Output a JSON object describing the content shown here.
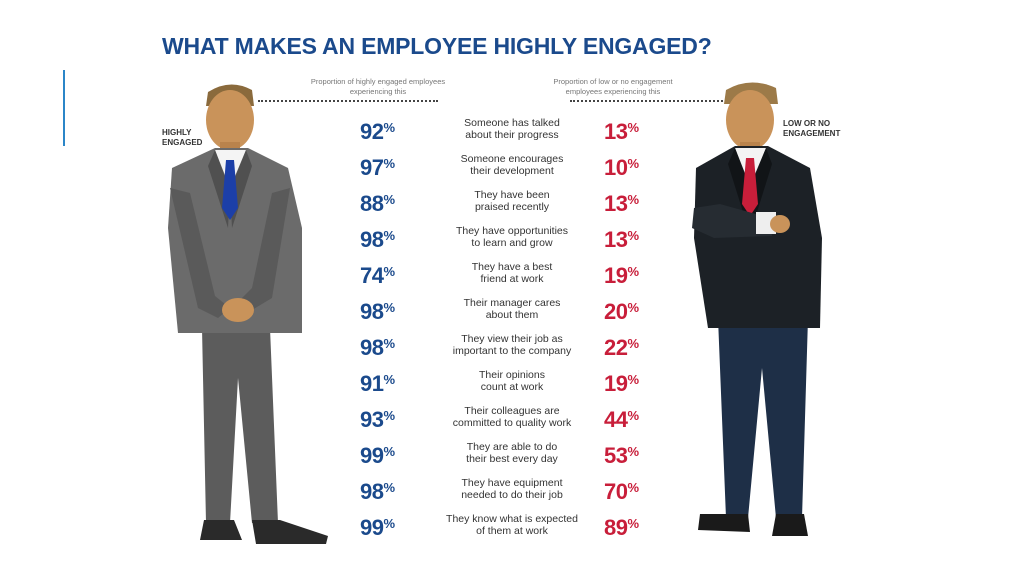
{
  "title": "WHAT MAKES AN EMPLOYEE HIGHLY ENGAGED?",
  "header": {
    "left_column": "Proportion of highly engaged employees experiencing this",
    "right_column": "Proportion of low or no engagement employees experiencing this",
    "left_label": "HIGHLY ENGAGED",
    "right_label": "LOW OR NO ENGAGEMENT"
  },
  "colors": {
    "high": "#1b4a8c",
    "low": "#c81e3a",
    "accent": "#2b86c8"
  },
  "chart_data": {
    "type": "table",
    "title": "WHAT MAKES AN EMPLOYEE HIGHLY ENGAGED?",
    "unit": "%",
    "columns": [
      "Highly engaged",
      "Low or no engagement"
    ],
    "rows": [
      {
        "label": "Someone has talked about their progress",
        "label_lines": [
          "Someone has talked",
          "about their progress"
        ],
        "high": 92,
        "low": 13
      },
      {
        "label": "Someone encourages their development",
        "label_lines": [
          "Someone encourages",
          "their development"
        ],
        "high": 97,
        "low": 10
      },
      {
        "label": "They have been praised recently",
        "label_lines": [
          "They have been",
          "praised recently"
        ],
        "high": 88,
        "low": 13
      },
      {
        "label": "They have opportunities to learn and grow",
        "label_lines": [
          "They have opportunities",
          "to learn and grow"
        ],
        "high": 98,
        "low": 13
      },
      {
        "label": "They have a best friend at work",
        "label_lines": [
          "They have a best",
          "friend at work"
        ],
        "high": 74,
        "low": 19
      },
      {
        "label": "Their manager cares about them",
        "label_lines": [
          "Their manager cares",
          "about them"
        ],
        "high": 98,
        "low": 20
      },
      {
        "label": "They view their job as important to the company",
        "label_lines": [
          "They view their job as",
          "important to the company"
        ],
        "high": 98,
        "low": 22
      },
      {
        "label": "Their opinions count at work",
        "label_lines": [
          "Their opinions",
          "count at work"
        ],
        "high": 91,
        "low": 19
      },
      {
        "label": "Their colleagues are committed to quality work",
        "label_lines": [
          "Their colleagues are",
          "committed to quality work"
        ],
        "high": 93,
        "low": 44
      },
      {
        "label": "They are able to do their best every day",
        "label_lines": [
          "They are able to do",
          "their best every day"
        ],
        "high": 99,
        "low": 53
      },
      {
        "label": "They have equipment needed to do their job",
        "label_lines": [
          "They have equipment",
          "needed to do their job"
        ],
        "high": 98,
        "low": 70
      },
      {
        "label": "They know what is expected of them at work",
        "label_lines": [
          "They know what is expected",
          "of them at work"
        ],
        "high": 99,
        "low": 89
      }
    ]
  }
}
